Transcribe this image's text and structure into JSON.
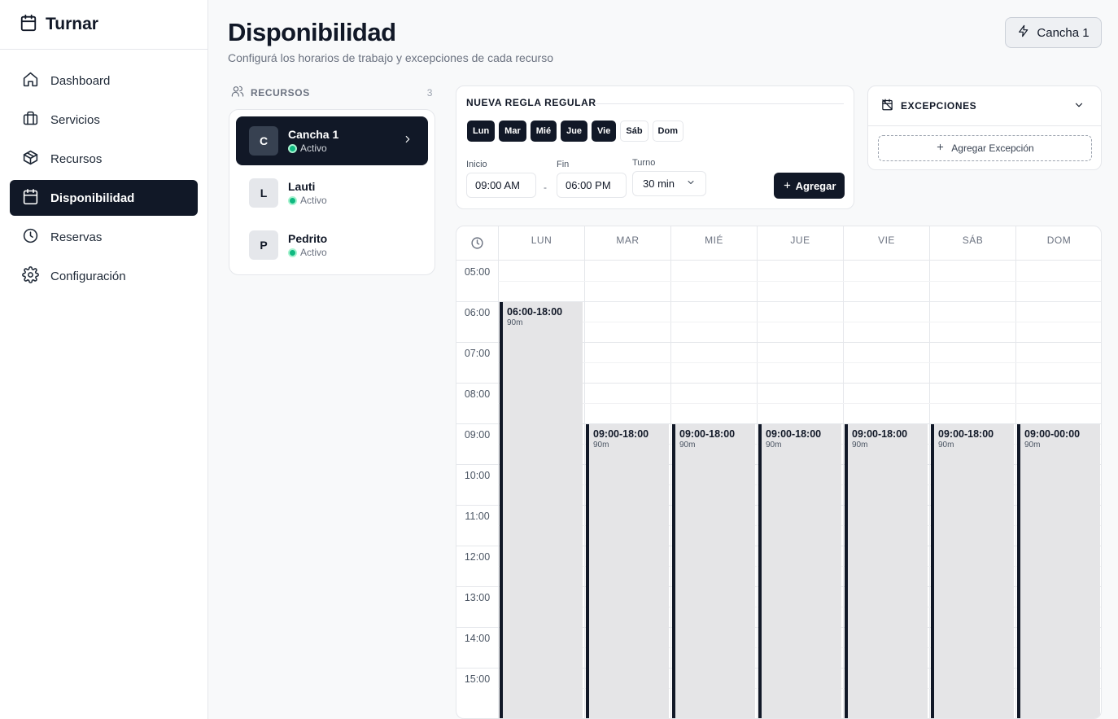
{
  "app": {
    "name": "Turnar"
  },
  "nav": [
    {
      "label": "Dashboard",
      "icon": "home-icon"
    },
    {
      "label": "Servicios",
      "icon": "briefcase-icon"
    },
    {
      "label": "Recursos",
      "icon": "box-icon"
    },
    {
      "label": "Disponibilidad",
      "icon": "calendar-icon",
      "active": true
    },
    {
      "label": "Reservas",
      "icon": "clock-icon"
    },
    {
      "label": "Configuración",
      "icon": "gear-icon"
    }
  ],
  "header": {
    "title": "Disponibilidad",
    "subtitle": "Configurá los horarios de trabajo y excepciones de cada recurso",
    "resource_button": "Cancha 1"
  },
  "resources": {
    "heading": "RECURSOS",
    "count": "3",
    "items": [
      {
        "initial": "C",
        "name": "Cancha 1",
        "status": "Activo",
        "active": true
      },
      {
        "initial": "L",
        "name": "Lauti",
        "status": "Activo"
      },
      {
        "initial": "P",
        "name": "Pedrito",
        "status": "Activo"
      }
    ]
  },
  "rule": {
    "title": "NUEVA REGLA REGULAR",
    "days": [
      {
        "label": "Lun",
        "on": true
      },
      {
        "label": "Mar",
        "on": true
      },
      {
        "label": "Mié",
        "on": true
      },
      {
        "label": "Jue",
        "on": true
      },
      {
        "label": "Vie",
        "on": true
      },
      {
        "label": "Sáb",
        "on": false
      },
      {
        "label": "Dom",
        "on": false
      }
    ],
    "start_label": "Inicio",
    "start_value": "09:00 AM",
    "separator": "-",
    "end_label": "Fin",
    "end_value": "06:00 PM",
    "slot_label": "Turno",
    "slot_value": "30 min",
    "add_label": "Agregar"
  },
  "exceptions": {
    "title": "EXCEPCIONES",
    "add_label": "Agregar Excepción"
  },
  "calendar": {
    "days": [
      "LUN",
      "MAR",
      "MIÉ",
      "JUE",
      "VIE",
      "SÁB",
      "DOM"
    ],
    "hours": [
      "05:00",
      "06:00",
      "07:00",
      "08:00",
      "09:00",
      "10:00",
      "11:00",
      "12:00",
      "13:00",
      "14:00",
      "15:00"
    ],
    "blocks": [
      {
        "day": 0,
        "start": 6,
        "label": "06:00-18:00",
        "duration": "90m"
      },
      {
        "day": 1,
        "start": 9,
        "label": "09:00-18:00",
        "duration": "90m"
      },
      {
        "day": 2,
        "start": 9,
        "label": "09:00-18:00",
        "duration": "90m"
      },
      {
        "day": 3,
        "start": 9,
        "label": "09:00-18:00",
        "duration": "90m"
      },
      {
        "day": 4,
        "start": 9,
        "label": "09:00-18:00",
        "duration": "90m"
      },
      {
        "day": 5,
        "start": 9,
        "label": "09:00-18:00",
        "duration": "90m"
      },
      {
        "day": 6,
        "start": 9,
        "label": "09:00-00:00",
        "duration": "90m"
      }
    ]
  }
}
